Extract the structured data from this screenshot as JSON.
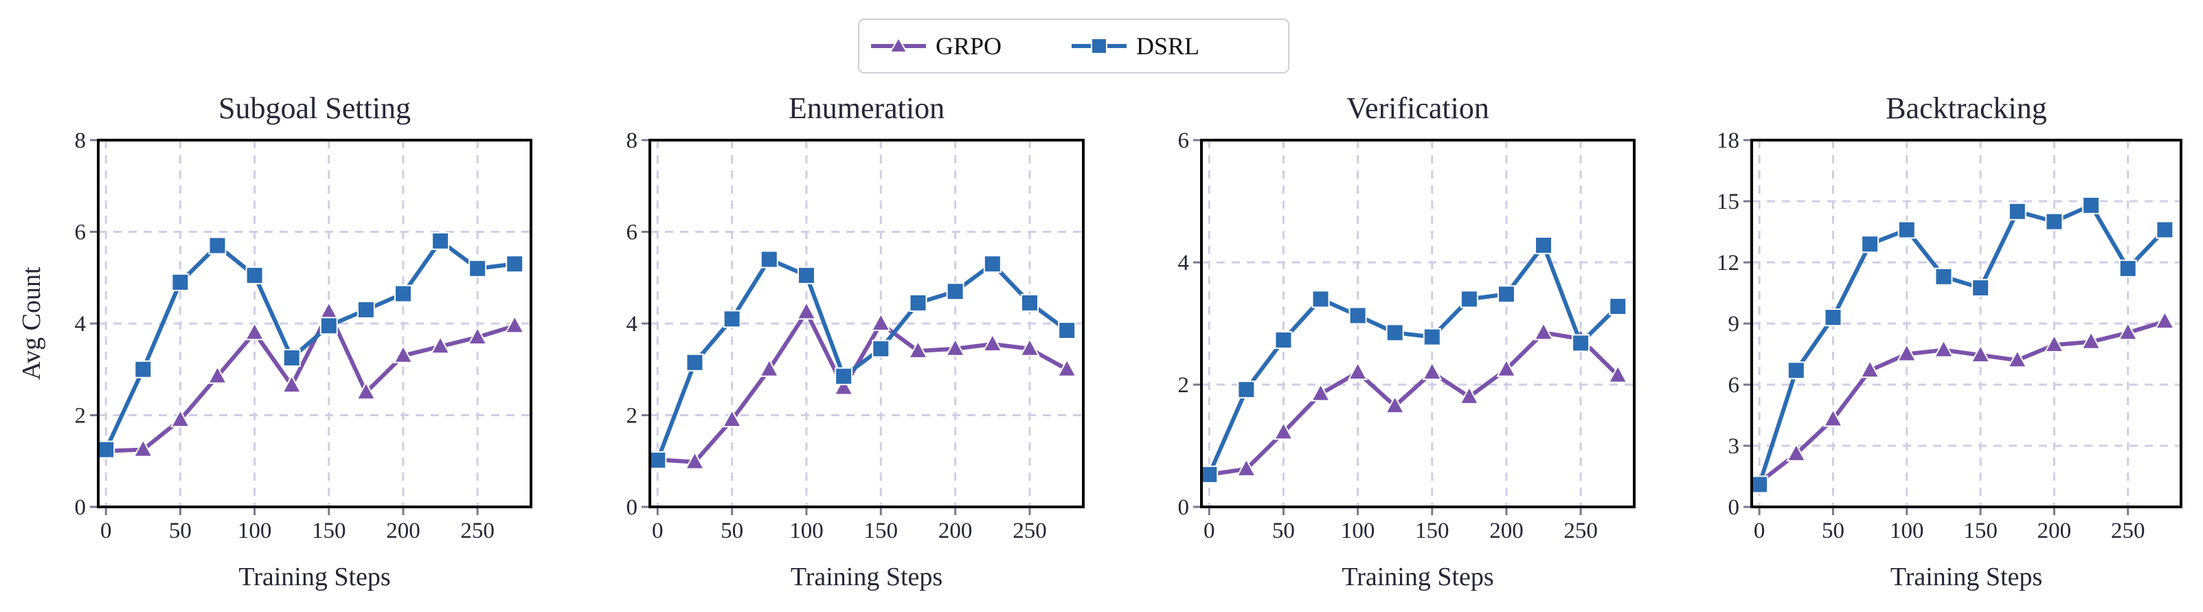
{
  "chart_data": [
    {
      "type": "line",
      "title": "Subgoal Setting",
      "xlabel": "Training Steps",
      "ylabel": "Avg Count",
      "x": [
        0,
        25,
        50,
        75,
        100,
        125,
        150,
        175,
        200,
        225,
        250,
        275
      ],
      "xticks": [
        0,
        50,
        100,
        150,
        200,
        250
      ],
      "yticks": [
        0,
        2,
        4,
        6,
        8
      ],
      "ylim": [
        0,
        8
      ],
      "grid": true,
      "series": [
        {
          "name": "GRPO",
          "values": [
            1.22,
            1.25,
            1.9,
            2.85,
            3.8,
            2.65,
            4.25,
            2.5,
            3.3,
            3.5,
            3.7,
            3.95
          ]
        },
        {
          "name": "DSRL",
          "values": [
            1.25,
            3.0,
            4.9,
            5.7,
            5.05,
            3.25,
            3.95,
            4.3,
            4.65,
            5.8,
            5.2,
            5.3
          ]
        }
      ]
    },
    {
      "type": "line",
      "title": "Enumeration",
      "xlabel": "Training Steps",
      "ylabel": "",
      "x": [
        0,
        25,
        50,
        75,
        100,
        125,
        150,
        175,
        200,
        225,
        250,
        275
      ],
      "xticks": [
        0,
        50,
        100,
        150,
        200,
        250
      ],
      "yticks": [
        0,
        2,
        4,
        6,
        8
      ],
      "ylim": [
        0,
        8
      ],
      "grid": true,
      "series": [
        {
          "name": "GRPO",
          "values": [
            1.03,
            0.98,
            1.9,
            3.0,
            4.25,
            2.6,
            4.0,
            3.4,
            3.45,
            3.55,
            3.45,
            3.0
          ]
        },
        {
          "name": "DSRL",
          "values": [
            1.02,
            3.15,
            4.1,
            5.4,
            5.05,
            2.85,
            3.45,
            4.45,
            4.7,
            5.3,
            4.45,
            3.85
          ]
        }
      ]
    },
    {
      "type": "line",
      "title": "Verification",
      "xlabel": "Training Steps",
      "ylabel": "",
      "x": [
        0,
        25,
        50,
        75,
        100,
        125,
        150,
        175,
        200,
        225,
        250,
        275
      ],
      "xticks": [
        0,
        50,
        100,
        150,
        200,
        250
      ],
      "yticks": [
        0,
        2,
        4,
        6
      ],
      "ylim": [
        0,
        6
      ],
      "grid": true,
      "series": [
        {
          "name": "GRPO",
          "values": [
            0.53,
            0.62,
            1.22,
            1.85,
            2.2,
            1.65,
            2.2,
            1.8,
            2.25,
            2.85,
            2.75,
            2.15
          ]
        },
        {
          "name": "DSRL",
          "values": [
            0.53,
            1.92,
            2.73,
            3.4,
            3.13,
            2.85,
            2.78,
            3.4,
            3.48,
            4.28,
            2.68,
            3.28
          ]
        }
      ]
    },
    {
      "type": "line",
      "title": "Backtracking",
      "xlabel": "Training Steps",
      "ylabel": "",
      "x": [
        0,
        25,
        50,
        75,
        100,
        125,
        150,
        175,
        200,
        225,
        250,
        275
      ],
      "xticks": [
        0,
        50,
        100,
        150,
        200,
        250
      ],
      "yticks": [
        0,
        3,
        6,
        9,
        12,
        15,
        18
      ],
      "ylim": [
        0,
        18
      ],
      "grid": true,
      "series": [
        {
          "name": "GRPO",
          "values": [
            1.2,
            2.6,
            4.3,
            6.7,
            7.5,
            7.7,
            7.45,
            7.2,
            7.95,
            8.1,
            8.55,
            9.1
          ]
        },
        {
          "name": "DSRL",
          "values": [
            1.1,
            6.7,
            9.3,
            12.9,
            13.6,
            11.3,
            10.75,
            14.5,
            14.0,
            14.8,
            11.7,
            13.6
          ]
        }
      ]
    }
  ],
  "legend": {
    "placement": "top-center",
    "items": [
      {
        "label": "GRPO",
        "color": "#7b52ab",
        "marker": "triangle"
      },
      {
        "label": "DSRL",
        "color": "#2b6cb3",
        "marker": "square"
      }
    ]
  },
  "colors": {
    "GRPO": "#7b52ab",
    "DSRL": "#2b6cb3",
    "grid": "#d0cde6"
  }
}
